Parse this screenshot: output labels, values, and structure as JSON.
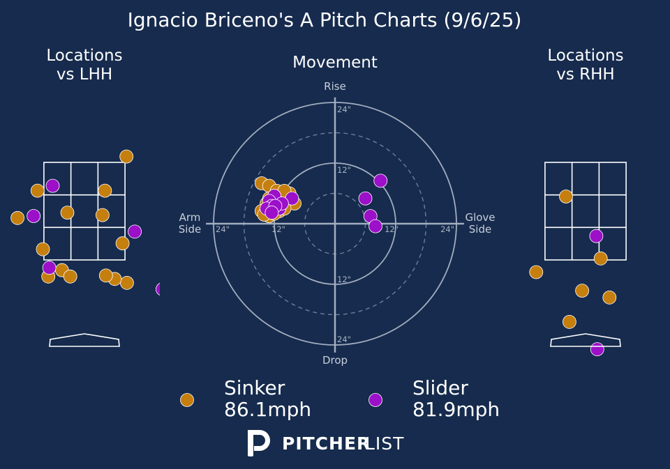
{
  "title": "Ignacio Briceno's A Pitch Charts (9/6/25)",
  "colors": {
    "background": "#162b4d",
    "Sinker": "#c57f0f",
    "Slider": "#9b10c8"
  },
  "chart_data": [
    {
      "type": "scatter",
      "title": "Locations\nvs LHH",
      "series": [
        {
          "name": "Sinker",
          "points": [
            [
              0.86,
              3.62
            ],
            [
              -1.37,
              2.36
            ],
            [
              -0.96,
              2.92
            ],
            [
              0.42,
              2.92
            ],
            [
              0.37,
              2.42
            ],
            [
              -0.35,
              2.47
            ],
            [
              -0.85,
              1.72
            ],
            [
              -0.46,
              1.29
            ],
            [
              -0.29,
              1.16
            ],
            [
              0.87,
              1.03
            ],
            [
              0.62,
              1.11
            ],
            [
              0.44,
              1.18
            ],
            [
              -0.74,
              1.16
            ],
            [
              0.78,
              1.84
            ]
          ]
        },
        {
          "name": "Slider",
          "points": [
            [
              -0.65,
              3.02
            ],
            [
              -1.75,
              3.32
            ],
            [
              -1.98,
              2.7
            ],
            [
              -1.04,
              2.4
            ],
            [
              -0.72,
              1.34
            ],
            [
              1.03,
              2.08
            ],
            [
              1.6,
              0.9
            ],
            [
              1.83,
              0.4
            ],
            [
              1.96,
              0.2
            ]
          ]
        }
      ]
    },
    {
      "type": "scatter",
      "title": "Movement",
      "axis_labels": {
        "top": "Rise",
        "bottom": "Drop",
        "left": "Arm\nSide",
        "right": "Glove\nSide"
      },
      "ring_labels": [
        "24\"",
        "12\"",
        "12\"",
        "24\"",
        "12\"",
        "24\"",
        "12\"",
        "24\""
      ],
      "series": [
        {
          "name": "Sinker",
          "points": [
            [
              -14.5,
              8.0
            ],
            [
              -13.0,
              7.5
            ],
            [
              -11.5,
              6.5
            ],
            [
              -10.5,
              5.5
            ],
            [
              -9.5,
              4.0
            ],
            [
              -13.5,
              4.0
            ],
            [
              -12.0,
              3.5
            ],
            [
              -11.0,
              2.5
            ],
            [
              -10.5,
              3.5
            ],
            [
              -14.5,
              2.5
            ],
            [
              -12.5,
              2.0
            ],
            [
              -13.0,
              1.5
            ],
            [
              -14.0,
              1.8
            ],
            [
              -11.5,
              4.0
            ],
            [
              -8.0,
              4.0
            ],
            [
              -10.0,
              5.0
            ],
            [
              -9.0,
              6.0
            ],
            [
              -11.0,
              4.5
            ],
            [
              -10.0,
              3.0
            ],
            [
              -12.0,
              5.5
            ],
            [
              -13.0,
              5.0
            ],
            [
              -11.0,
              3.0
            ],
            [
              -10.0,
              6.5
            ],
            [
              -12.5,
              2.8
            ],
            [
              -12.0,
              2.0
            ]
          ]
        },
        {
          "name": "Slider",
          "points": [
            [
              9.0,
              8.5
            ],
            [
              6.0,
              5.0
            ],
            [
              7.0,
              1.5
            ],
            [
              8.0,
              -0.5
            ],
            [
              -8.5,
              5.0
            ],
            [
              -12.0,
              5.5
            ],
            [
              -13.0,
              4.5
            ],
            [
              -11.0,
              3.0
            ],
            [
              -10.5,
              4.0
            ],
            [
              -12.5,
              3.5
            ],
            [
              -13.5,
              3.0
            ],
            [
              -11.8,
              3.5
            ],
            [
              -12.5,
              2.2
            ]
          ]
        }
      ]
    },
    {
      "type": "scatter",
      "title": "Locations\nvs RHH",
      "series": [
        {
          "name": "Sinker",
          "points": [
            [
              -0.4,
              2.8
            ],
            [
              0.31,
              1.53
            ],
            [
              -1.01,
              1.25
            ],
            [
              -0.07,
              0.87
            ],
            [
              0.49,
              0.73
            ],
            [
              -0.33,
              0.23
            ]
          ]
        },
        {
          "name": "Slider",
          "points": [
            [
              0.22,
              1.99
            ],
            [
              0.24,
              -0.33
            ]
          ]
        }
      ]
    }
  ],
  "legend": [
    {
      "name": "Sinker",
      "velo": "86.1mph",
      "color": "#c57f0f"
    },
    {
      "name": "Slider",
      "velo": "81.9mph",
      "color": "#9b10c8"
    }
  ],
  "logo": {
    "bold": "PITCHER",
    "light": "LIST"
  }
}
